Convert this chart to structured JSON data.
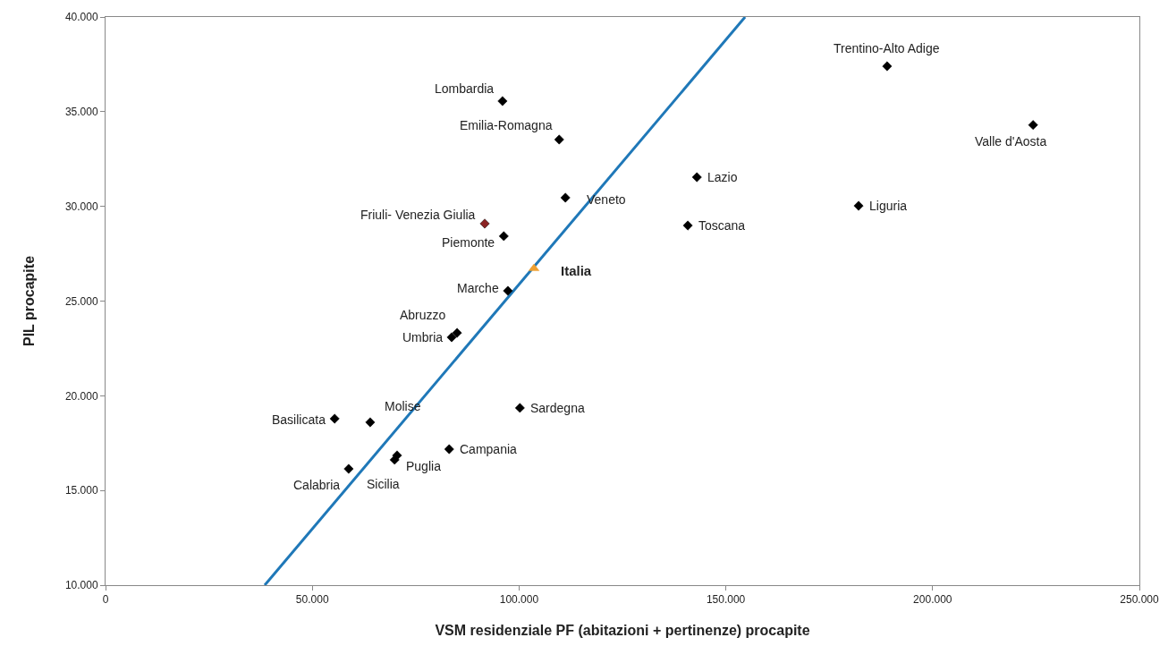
{
  "chart_data": {
    "type": "scatter",
    "xlabel": "VSM residenziale PF (abitazioni + pertinenze) procapite",
    "ylabel": "PIL procapite",
    "xlim": [
      0,
      250000
    ],
    "ylim": [
      10000,
      40000
    ],
    "xticks": [
      0,
      {
        "value": 50000,
        "label": "50.000"
      },
      {
        "value": 100000,
        "label": "100.000"
      },
      {
        "value": 150000,
        "label": "150.000"
      },
      {
        "value": 200000,
        "label": "200.000"
      },
      {
        "value": 250000,
        "label": "250.000"
      }
    ],
    "yticks": [
      {
        "value": 10000,
        "label": "10.000"
      },
      {
        "value": 15000,
        "label": "15.000"
      },
      {
        "value": 20000,
        "label": "20.000"
      },
      {
        "value": 25000,
        "label": "25.000"
      },
      {
        "value": 30000,
        "label": "30.000"
      },
      {
        "value": 35000,
        "label": "35.000"
      },
      {
        "value": 40000,
        "label": "40.000"
      }
    ],
    "grid": false,
    "marker": "diamond",
    "series": [
      {
        "type": "line",
        "color": "#1f78b8",
        "marker": "none",
        "x": [
          38500,
          154650
        ],
        "values": [
          10000,
          40000
        ]
      },
      {
        "color": "#000000",
        "x": [
          189000,
          224300,
          96000,
          109700,
          143000,
          111200,
          182100,
          91700,
          140800,
          96300,
          97300,
          85000,
          83700,
          100200,
          55400,
          64000,
          83100,
          70500,
          69900,
          58800
        ],
        "values": [
          37400,
          34300,
          35560,
          33530,
          31540,
          30460,
          30030,
          29090,
          28990,
          28430,
          25540,
          23320,
          23090,
          19360,
          18790,
          18600,
          17180,
          16850,
          16620,
          16140
        ],
        "colors": [
          "#000000",
          "#000000",
          "#000000",
          "#000000",
          "#000000",
          "#000000",
          "#000000",
          "#8b2323",
          "#000000",
          "#000000",
          "#000000",
          "#000000",
          "#000000",
          "#000000",
          "#000000",
          "#000000",
          "#000000",
          "#000000",
          "#000000",
          "#000000"
        ]
      },
      {
        "name": "Italia",
        "color": "#f0a030",
        "marker": "triangle",
        "x": [
          103600
        ],
        "values": [
          26720
        ]
      }
    ],
    "annotations": [
      {
        "text": "Trentino-Alto Adige",
        "x": 189000,
        "y": 37400
      },
      {
        "text": "Valle d'Aosta",
        "x": 224300,
        "y": 34300
      },
      {
        "text": "Lombardia",
        "x": 96000,
        "y": 35560
      },
      {
        "text": "Emilia-Romagna",
        "x": 109700,
        "y": 33530
      },
      {
        "text": "Lazio",
        "x": 143000,
        "y": 31540
      },
      {
        "text": "Veneto",
        "x": 111200,
        "y": 30460
      },
      {
        "text": "Liguria",
        "x": 182100,
        "y": 30030
      },
      {
        "text": "Friuli- Venezia Giulia",
        "x": 91700,
        "y": 29090
      },
      {
        "text": "Toscana",
        "x": 140800,
        "y": 28990
      },
      {
        "text": "Piemonte",
        "x": 96300,
        "y": 28430
      },
      {
        "text": "Marche",
        "x": 97300,
        "y": 25540
      },
      {
        "text": "Abruzzo",
        "x": 85000,
        "y": 23320
      },
      {
        "text": "Umbria",
        "x": 83700,
        "y": 23090
      },
      {
        "text": "Sardegna",
        "x": 100200,
        "y": 19360
      },
      {
        "text": "Basilicata",
        "x": 55400,
        "y": 18790
      },
      {
        "text": "Molise",
        "x": 64000,
        "y": 18600
      },
      {
        "text": "Campania",
        "x": 83100,
        "y": 17180
      },
      {
        "text": "Puglia",
        "x": 70500,
        "y": 16850
      },
      {
        "text": "Sicilia",
        "x": 69900,
        "y": 16620
      },
      {
        "text": "Calabria",
        "x": 58800,
        "y": 16140
      }
    ]
  }
}
